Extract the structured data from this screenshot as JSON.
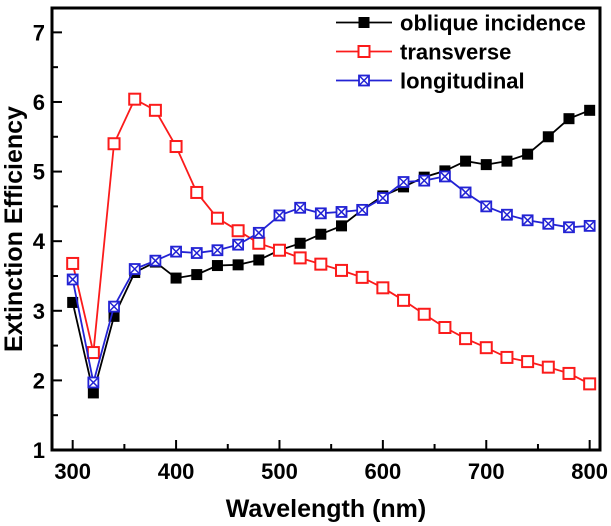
{
  "figure": {
    "background": "#ffffff",
    "frame_color": "#000000"
  },
  "chart_data": {
    "type": "line",
    "title": "",
    "xlabel": "Wavelength (nm)",
    "ylabel": "Extinction Efficiency",
    "xlim": [
      280,
      810
    ],
    "ylim": [
      1,
      7.35
    ],
    "x_major_ticks": [
      300,
      400,
      500,
      600,
      700,
      800
    ],
    "x_minor_ticks": [
      350,
      450,
      550,
      650,
      750
    ],
    "y_major_ticks": [
      1,
      2,
      3,
      4,
      5,
      6,
      7
    ],
    "y_minor_ticks": [
      1.5,
      2.5,
      3.5,
      4.5,
      5.5,
      6.5
    ],
    "grid": false,
    "legend": {
      "position": "top-right"
    },
    "x": [
      300,
      320,
      340,
      360,
      380,
      400,
      420,
      440,
      460,
      480,
      500,
      520,
      540,
      560,
      580,
      600,
      620,
      640,
      660,
      680,
      700,
      720,
      740,
      760,
      780,
      800
    ],
    "series": [
      {
        "name": "oblique incidence",
        "color": "#000000",
        "marker": "filled-square",
        "values": [
          3.12,
          1.82,
          2.92,
          3.55,
          3.7,
          3.47,
          3.52,
          3.65,
          3.66,
          3.73,
          3.87,
          3.97,
          4.1,
          4.22,
          4.45,
          4.65,
          4.78,
          4.92,
          5.01,
          5.15,
          5.1,
          5.15,
          5.25,
          5.5,
          5.76,
          5.88
        ]
      },
      {
        "name": "transverse",
        "color": "#fb1b1b",
        "marker": "open-square",
        "values": [
          3.68,
          2.4,
          5.4,
          6.04,
          5.88,
          5.36,
          4.7,
          4.33,
          4.15,
          3.97,
          3.87,
          3.76,
          3.67,
          3.58,
          3.48,
          3.33,
          3.15,
          2.95,
          2.76,
          2.6,
          2.47,
          2.33,
          2.27,
          2.19,
          2.1,
          1.95
        ]
      },
      {
        "name": "longitudinal",
        "color": "#2323d4",
        "marker": "crossed-square",
        "values": [
          3.45,
          1.97,
          3.06,
          3.6,
          3.72,
          3.85,
          3.83,
          3.87,
          3.95,
          4.12,
          4.37,
          4.48,
          4.4,
          4.42,
          4.45,
          4.62,
          4.85,
          4.87,
          4.93,
          4.7,
          4.5,
          4.38,
          4.3,
          4.25,
          4.2,
          4.22
        ]
      }
    ]
  }
}
